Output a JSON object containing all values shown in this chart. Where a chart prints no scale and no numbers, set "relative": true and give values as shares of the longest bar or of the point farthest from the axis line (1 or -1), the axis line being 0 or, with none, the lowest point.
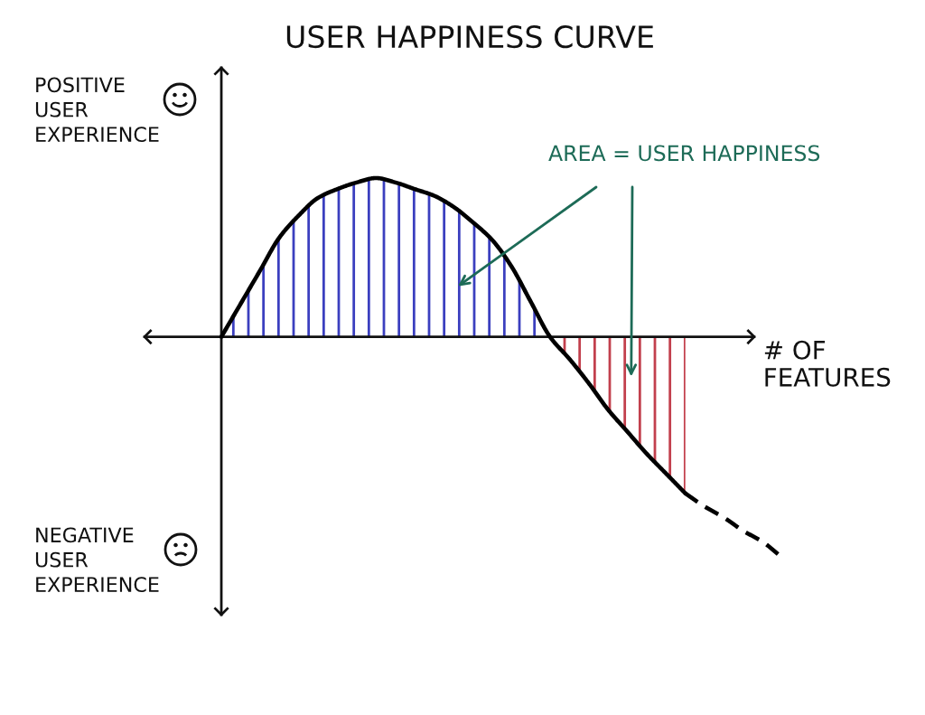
{
  "chart_data": {
    "type": "line",
    "title": "USER HAPPINESS CURVE",
    "xlabel": "# OF\nFEATURES",
    "relative": true,
    "categories": [
      null,
      null,
      null,
      null,
      null,
      null,
      null,
      null,
      null,
      null,
      null,
      null,
      null,
      null,
      null,
      null,
      null,
      null,
      null,
      null,
      null,
      null,
      null,
      null,
      null,
      null,
      null,
      null,
      null,
      null
    ],
    "series": [
      {
        "type": "area",
        "color": "#3b3fbf",
        "values": [
          0,
          0.15,
          0.3,
          0.45,
          0.55,
          0.63,
          0.67,
          0.7,
          0.72,
          0.7,
          0.67,
          0.64,
          0.59,
          0.52,
          0.44,
          0.32,
          0.16,
          0,
          null,
          null,
          null,
          null,
          null,
          null,
          null,
          null,
          null,
          null,
          null,
          null
        ]
      },
      {
        "type": "area",
        "color": "#c2404d",
        "values": [
          null,
          null,
          null,
          null,
          null,
          null,
          null,
          null,
          null,
          null,
          null,
          null,
          null,
          null,
          null,
          null,
          null,
          0,
          -0.1,
          -0.21,
          -0.33,
          -0.43,
          -0.53,
          -0.62,
          -0.71,
          null,
          null,
          null,
          null,
          null
        ]
      },
      {
        "color": "#000000",
        "line_style": "solid",
        "values": [
          0,
          0.15,
          0.3,
          0.45,
          0.55,
          0.63,
          0.67,
          0.7,
          0.72,
          0.7,
          0.67,
          0.64,
          0.59,
          0.52,
          0.44,
          0.32,
          0.16,
          0,
          -0.1,
          -0.21,
          -0.33,
          -0.43,
          -0.53,
          -0.62,
          -0.71,
          null,
          null,
          null,
          null,
          null
        ]
      },
      {
        "type": "line",
        "color": "#000000",
        "line_style": "dashed",
        "values": [
          null,
          null,
          null,
          null,
          null,
          null,
          null,
          null,
          null,
          null,
          null,
          null,
          null,
          null,
          null,
          null,
          null,
          null,
          null,
          null,
          null,
          null,
          null,
          null,
          -0.71,
          -0.77,
          -0.82,
          -0.88,
          -0.93,
          -1
        ]
      }
    ],
    "annotations": [
      "POSITIVE\nUSER\nEXPERIENCE",
      "NEGATIVE\nUSER\nEXPERIENCE",
      "AREA = USER HAPPINESS"
    ]
  }
}
